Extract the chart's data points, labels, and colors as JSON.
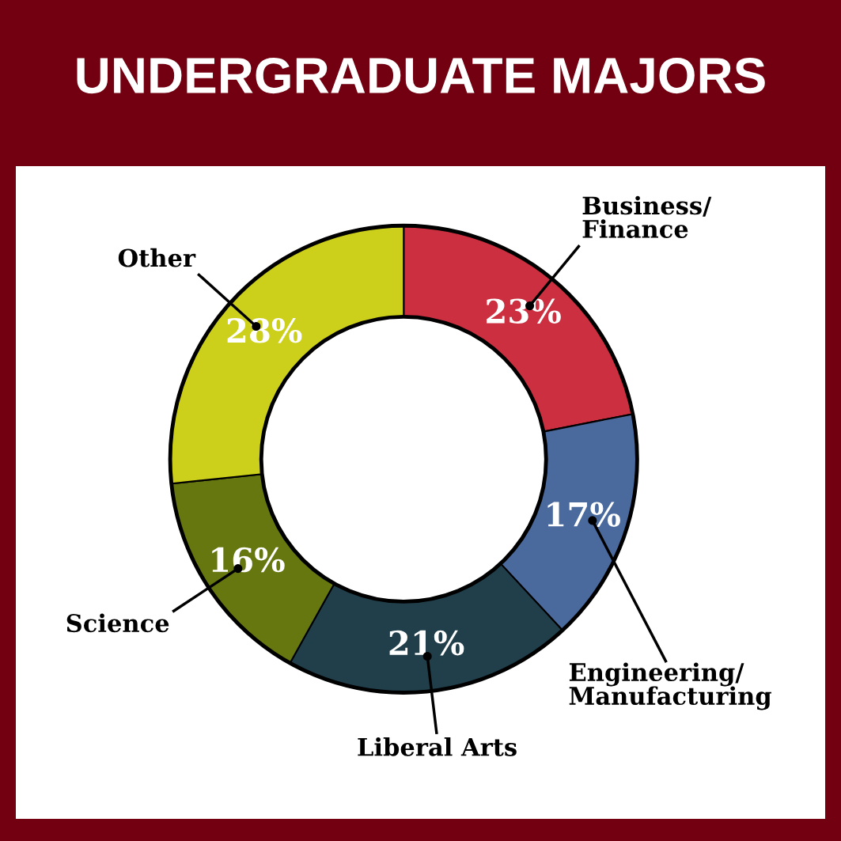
{
  "chart_data": {
    "type": "donut",
    "title": "UNDERGRADUATE MAJORS",
    "categories": [
      "Business/\nFinance",
      "Engineering/\nManufacturing",
      "Liberal Arts",
      "Science",
      "Other"
    ],
    "values": [
      23,
      17,
      21,
      16,
      28
    ],
    "colors": [
      "#cc2f3f",
      "#4a6a9e",
      "#213f4b",
      "#66770f",
      "#ccd01a"
    ],
    "value_labels": [
      "23%",
      "17%",
      "21%",
      "16%",
      "28%"
    ],
    "legend": false
  }
}
